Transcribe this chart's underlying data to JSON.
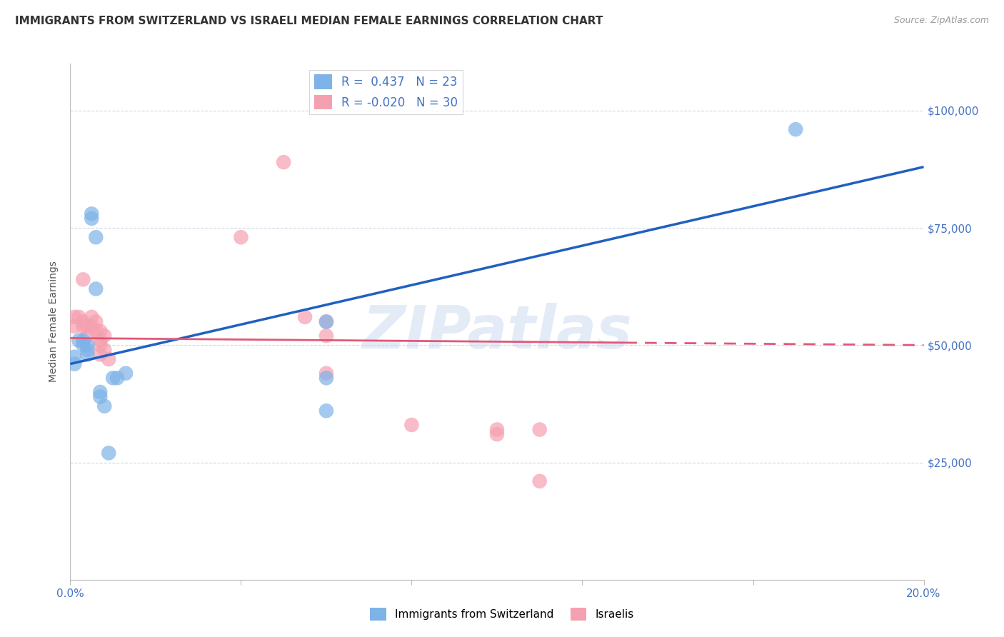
{
  "title": "IMMIGRANTS FROM SWITZERLAND VS ISRAELI MEDIAN FEMALE EARNINGS CORRELATION CHART",
  "source": "Source: ZipAtlas.com",
  "ylabel": "Median Female Earnings",
  "legend_labels": [
    "Immigrants from Switzerland",
    "Israelis"
  ],
  "r_swiss": 0.437,
  "n_swiss": 23,
  "r_israeli": -0.02,
  "n_israeli": 30,
  "xlim": [
    0.0,
    0.2
  ],
  "ylim": [
    0,
    110000
  ],
  "yticks": [
    0,
    25000,
    50000,
    75000,
    100000
  ],
  "ytick_labels": [
    "",
    "$25,000",
    "$50,000",
    "$75,000",
    "$100,000"
  ],
  "xticks": [
    0.0,
    0.04,
    0.08,
    0.12,
    0.16,
    0.2
  ],
  "xtick_labels": [
    "0.0%",
    "",
    "",
    "",
    "",
    "20.0%"
  ],
  "swiss_color": "#7eb3e8",
  "israeli_color": "#f5a0b0",
  "swiss_line_color": "#2060c0",
  "israeli_line_color": "#e05878",
  "swiss_line": [
    0.0,
    46000,
    0.2,
    88000
  ],
  "israeli_line": [
    0.0,
    51500,
    0.2,
    50000
  ],
  "swiss_scatter": [
    [
      0.001,
      47500
    ],
    [
      0.001,
      46000
    ],
    [
      0.002,
      51000
    ],
    [
      0.003,
      51000
    ],
    [
      0.003,
      50000
    ],
    [
      0.004,
      50000
    ],
    [
      0.004,
      49000
    ],
    [
      0.004,
      48000
    ],
    [
      0.005,
      78000
    ],
    [
      0.005,
      77000
    ],
    [
      0.006,
      73000
    ],
    [
      0.006,
      62000
    ],
    [
      0.007,
      40000
    ],
    [
      0.007,
      39000
    ],
    [
      0.008,
      37000
    ],
    [
      0.009,
      27000
    ],
    [
      0.01,
      43000
    ],
    [
      0.011,
      43000
    ],
    [
      0.013,
      44000
    ],
    [
      0.06,
      55000
    ],
    [
      0.06,
      43000
    ],
    [
      0.06,
      36000
    ],
    [
      0.17,
      96000
    ]
  ],
  "israeli_scatter": [
    [
      0.001,
      56000
    ],
    [
      0.001,
      54000
    ],
    [
      0.002,
      56000
    ],
    [
      0.003,
      64000
    ],
    [
      0.003,
      55000
    ],
    [
      0.003,
      54000
    ],
    [
      0.004,
      54000
    ],
    [
      0.004,
      52000
    ],
    [
      0.005,
      56000
    ],
    [
      0.005,
      54000
    ],
    [
      0.006,
      55000
    ],
    [
      0.006,
      53000
    ],
    [
      0.007,
      53000
    ],
    [
      0.007,
      51000
    ],
    [
      0.007,
      50000
    ],
    [
      0.007,
      48000
    ],
    [
      0.008,
      52000
    ],
    [
      0.008,
      49000
    ],
    [
      0.009,
      47000
    ],
    [
      0.04,
      73000
    ],
    [
      0.05,
      89000
    ],
    [
      0.055,
      56000
    ],
    [
      0.06,
      55000
    ],
    [
      0.06,
      52000
    ],
    [
      0.06,
      44000
    ],
    [
      0.08,
      33000
    ],
    [
      0.1,
      32000
    ],
    [
      0.1,
      31000
    ],
    [
      0.11,
      32000
    ],
    [
      0.11,
      21000
    ]
  ],
  "watermark": "ZIPatlas",
  "background_color": "#ffffff",
  "grid_color": "#d0d8e8",
  "tick_color": "#4472c4",
  "title_color": "#333333",
  "title_fontsize": 11,
  "axis_label_fontsize": 10,
  "tick_label_fontsize": 10,
  "legend_fontsize": 11
}
